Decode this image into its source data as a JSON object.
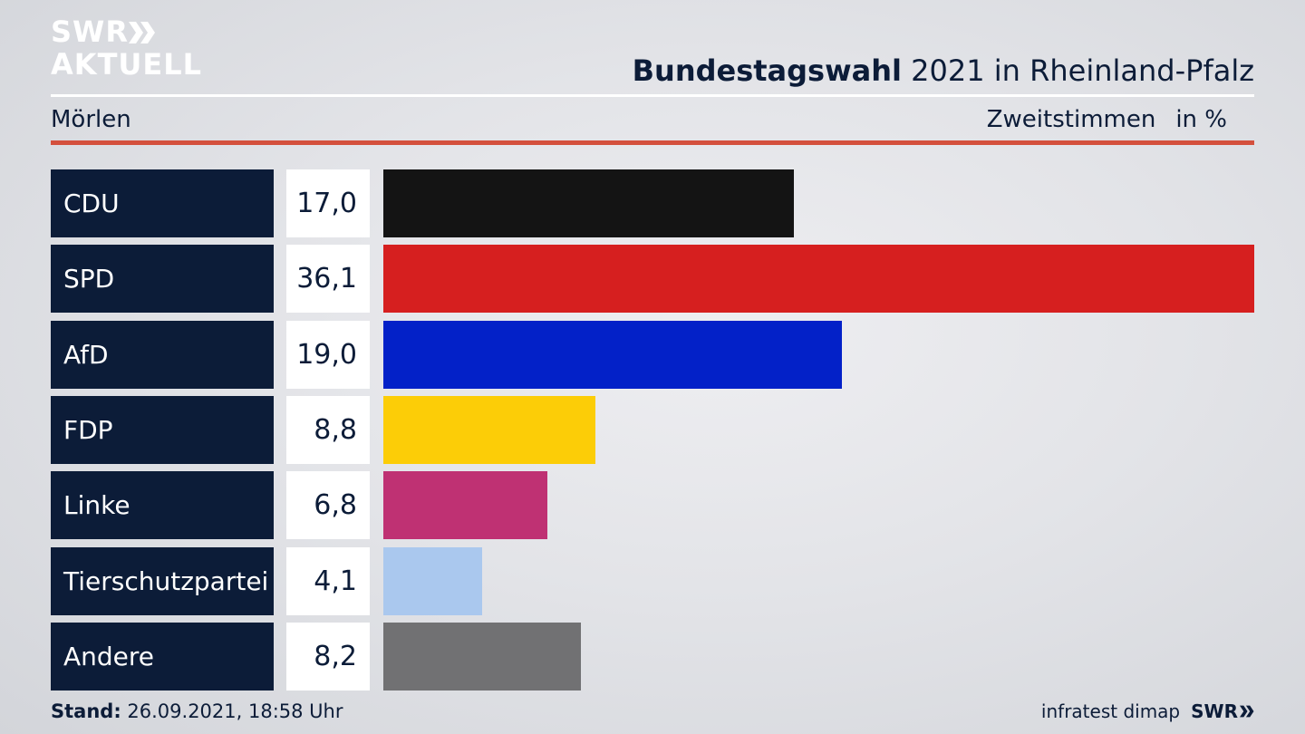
{
  "header": {
    "logo_line1": "SWR",
    "logo_line2": "AKTUELL",
    "title_bold": "Bundestagswahl",
    "title_rest": " 2021 in Rheinland-Pfalz",
    "location": "Mörlen",
    "measure": "Zweitstimmen",
    "unit": "in %"
  },
  "colors": {
    "navy": "#0c1c38",
    "accent_red": "#d4503d"
  },
  "chart_data": {
    "type": "bar",
    "orientation": "horizontal",
    "categories": [
      "CDU",
      "SPD",
      "AfD",
      "FDP",
      "Linke",
      "Tierschutzpartei",
      "Andere"
    ],
    "values": [
      17.0,
      36.1,
      19.0,
      8.8,
      6.8,
      4.1,
      8.2
    ],
    "value_labels": [
      "17,0",
      "36,1",
      "19,0",
      "8,8",
      "6,8",
      "4,1",
      "8,2"
    ],
    "colors": [
      "#141414",
      "#d61f1f",
      "#0321c8",
      "#fccd07",
      "#bf3173",
      "#aac8ee",
      "#717173"
    ],
    "xlim": [
      0,
      36.1
    ],
    "grid": false,
    "legend": "none"
  },
  "footer": {
    "stand_label": "Stand:",
    "stand_value": " 26.09.2021, 18:58 Uhr",
    "source": "infratest dimap",
    "brand": "SWR"
  }
}
